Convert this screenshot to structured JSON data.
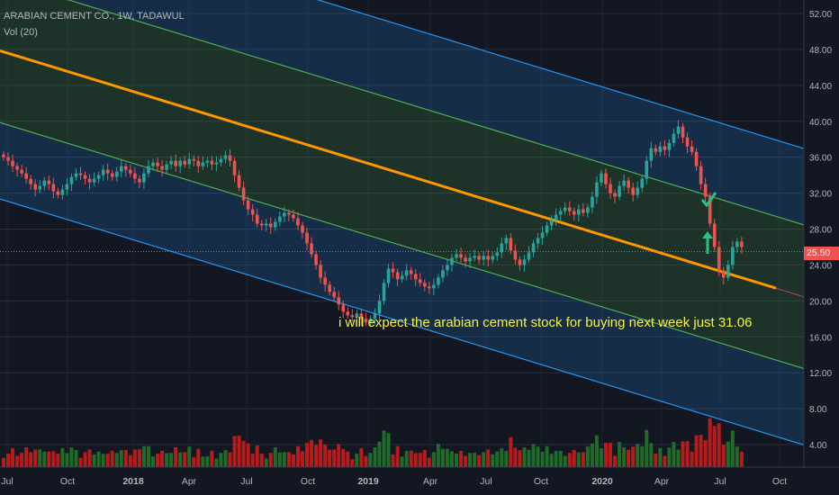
{
  "header": {
    "symbol_line": "ARABIAN CEMENT CO., 1W, TADAWUL",
    "volume_line": "Vol (20)"
  },
  "annotation": "i will expect the arabian cement stock for buying next week just 31.06",
  "price_badge": "25.50",
  "colors": {
    "background": "#131722",
    "up": "#26a69a",
    "down": "#ef5350",
    "vol_up": "#1e6b2a",
    "vol_down": "#b71c1c",
    "regression": "#ff9800",
    "channel_outer": "#2196f3",
    "channel_inner": "#4caf50",
    "annotation": "#f5f53b",
    "check_mark": "#26c281",
    "arrow_up": "#26c281"
  },
  "icons": {
    "target": "check-mark-icon",
    "direction": "arrow-up-icon"
  },
  "chart_data": {
    "type": "candlestick",
    "title": "ARABIAN CEMENT CO., 1W, TADAWUL",
    "y_axis_ticks": [
      "52.00",
      "48.00",
      "44.00",
      "40.00",
      "36.00",
      "32.00",
      "28.00",
      "24.00",
      "20.00",
      "16.00",
      "12.00",
      "8.00",
      "4.00"
    ],
    "x_axis_ticks": [
      "Jul",
      "Oct",
      "2018",
      "Apr",
      "Jul",
      "Oct",
      "2019",
      "Apr",
      "Jul",
      "Oct",
      "2020",
      "Apr",
      "Jul",
      "Oct"
    ],
    "ylim": [
      1.5,
      53.5
    ],
    "last_price": 25.5,
    "target_price": 31.06,
    "grid": true,
    "regression_channel": {
      "start_date": "2017-06-01",
      "end_date": "2020-10-15",
      "center_start": 48.0,
      "center_end": 21.0,
      "inner_start_upper": 60.0,
      "inner_start_lower": 39.0,
      "outer_start_upper": 72.0,
      "outer_start_lower": 31.0,
      "inner_offset": 8.0,
      "outer_offset": 16.5
    },
    "candle_closes": [
      36.0,
      35.6,
      35.0,
      34.6,
      34.2,
      33.6,
      33.0,
      32.4,
      32.8,
      33.4,
      33.0,
      32.2,
      31.8,
      32.4,
      33.0,
      33.8,
      34.2,
      34.0,
      33.6,
      33.2,
      33.6,
      34.0,
      34.6,
      34.2,
      33.8,
      34.4,
      35.0,
      34.6,
      34.2,
      33.6,
      33.2,
      34.2,
      35.0,
      35.4,
      35.0,
      34.6,
      35.2,
      35.6,
      35.0,
      35.6,
      35.2,
      35.8,
      35.6,
      35.0,
      35.4,
      35.6,
      35.2,
      35.4,
      35.8,
      36.2,
      35.6,
      34.0,
      32.6,
      31.2,
      30.2,
      29.6,
      28.6,
      28.4,
      28.6,
      28.2,
      28.8,
      29.4,
      29.8,
      29.6,
      29.2,
      28.4,
      27.6,
      26.4,
      25.2,
      24.0,
      22.6,
      21.8,
      21.0,
      20.4,
      19.6,
      18.8,
      18.4,
      18.2,
      18.6,
      18.0,
      17.6,
      18.0,
      18.6,
      20.0,
      22.0,
      23.6,
      23.2,
      22.4,
      22.8,
      23.4,
      23.0,
      22.4,
      22.0,
      21.6,
      21.4,
      21.8,
      22.6,
      23.4,
      24.0,
      24.8,
      25.2,
      24.8,
      24.4,
      24.8,
      25.0,
      24.6,
      25.0,
      24.6,
      25.0,
      25.4,
      26.4,
      27.0,
      25.6,
      24.6,
      24.0,
      24.6,
      25.4,
      26.4,
      27.0,
      27.6,
      28.4,
      29.0,
      29.6,
      30.0,
      30.4,
      30.0,
      29.6,
      30.2,
      29.8,
      30.4,
      31.6,
      33.2,
      34.2,
      33.0,
      32.0,
      31.6,
      32.8,
      33.4,
      32.6,
      31.8,
      32.6,
      33.6,
      35.6,
      37.0,
      36.6,
      37.2,
      36.8,
      37.6,
      38.6,
      39.4,
      38.2,
      37.2,
      36.6,
      35.0,
      33.0,
      31.6,
      28.6,
      26.0,
      23.4,
      22.6,
      24.0,
      26.0,
      26.6,
      26.0
    ]
  }
}
